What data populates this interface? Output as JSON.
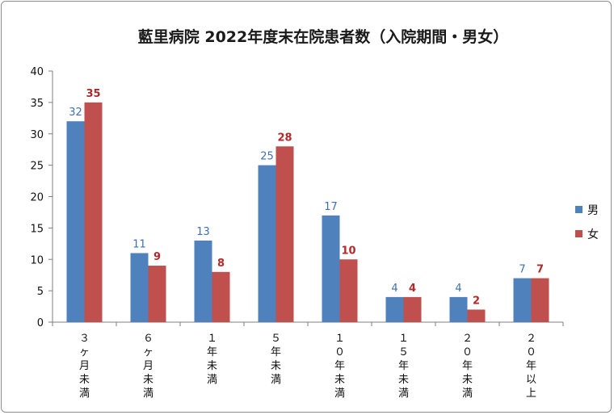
{
  "chart_data": {
    "type": "bar",
    "title": "藍里病院 2022年度末在院患者数（入院期間・男女）",
    "categories": [
      "３ヶ月未満",
      "６ヶ月未満",
      "１年未満",
      "５年未満",
      "１０年未満",
      "１５年未満",
      "２０年未満",
      "２０年以上"
    ],
    "series": [
      {
        "name": "男",
        "values": [
          32,
          11,
          13,
          25,
          17,
          4,
          4,
          7
        ],
        "color": "#4f81bd"
      },
      {
        "name": "女",
        "values": [
          35,
          9,
          8,
          28,
          10,
          4,
          2,
          7
        ],
        "color": "#c0504d"
      }
    ],
    "ylim": [
      0,
      40
    ],
    "yticks": [
      0,
      5,
      10,
      15,
      20,
      25,
      30,
      35,
      40
    ],
    "xlabel": "",
    "ylabel": "",
    "legend_position": "right",
    "grid": false
  }
}
